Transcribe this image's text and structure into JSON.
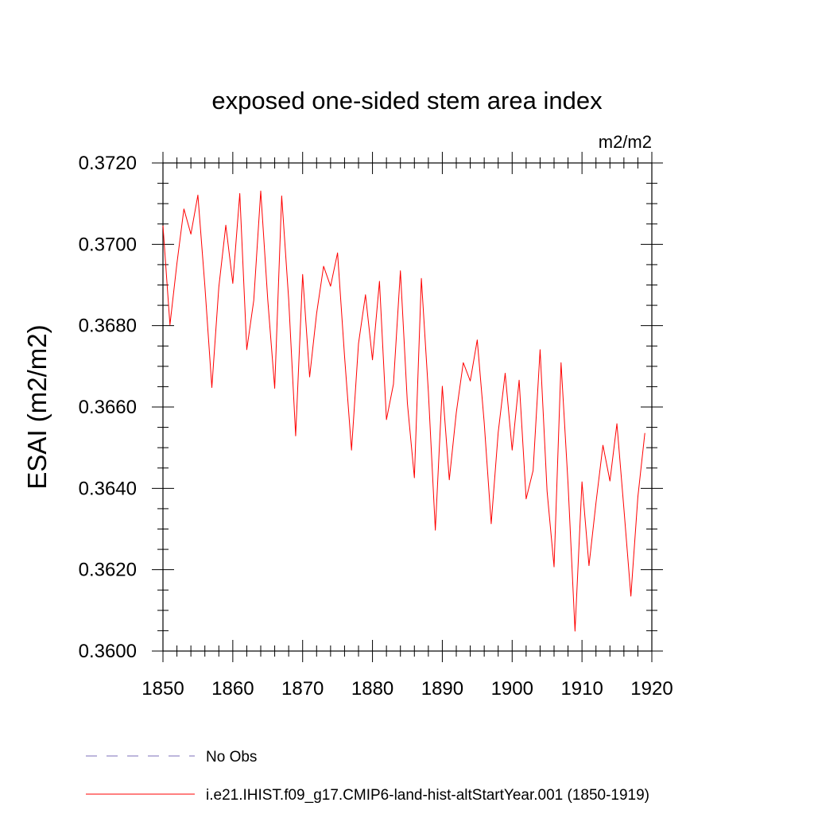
{
  "chart_data": {
    "type": "line",
    "title": "exposed one-sided stem area index",
    "units_label": "m2/m2",
    "ylabel": "ESAI  (m2/m2)",
    "xlabel": "",
    "xlim": [
      1850,
      1920
    ],
    "ylim": [
      0.36,
      0.372
    ],
    "x_ticks": [
      1850,
      1860,
      1870,
      1880,
      1890,
      1900,
      1910,
      1920
    ],
    "y_ticks": [
      0.36,
      0.362,
      0.364,
      0.366,
      0.368,
      0.37,
      0.372
    ],
    "x_tick_labels": [
      "1850",
      "1860",
      "1870",
      "1880",
      "1890",
      "1900",
      "1910",
      "1920"
    ],
    "y_tick_labels": [
      "0.3600",
      "0.3620",
      "0.3640",
      "0.3660",
      "0.3680",
      "0.3700",
      "0.3720"
    ],
    "grid": false,
    "legend_position": "bottom",
    "series": [
      {
        "name": "i.e21.IHIST.f09_g17.CMIP6-land-hist-altStartYear.001 (1850-1919)",
        "color": "#ff0000",
        "line_style": "solid",
        "x": [
          1850,
          1851,
          1852,
          1853,
          1854,
          1855,
          1856,
          1857,
          1858,
          1859,
          1860,
          1861,
          1862,
          1863,
          1864,
          1865,
          1866,
          1867,
          1868,
          1869,
          1870,
          1871,
          1872,
          1873,
          1874,
          1875,
          1876,
          1877,
          1878,
          1879,
          1880,
          1881,
          1882,
          1883,
          1884,
          1885,
          1886,
          1887,
          1888,
          1889,
          1890,
          1891,
          1892,
          1893,
          1894,
          1895,
          1896,
          1897,
          1898,
          1899,
          1900,
          1901,
          1902,
          1903,
          1904,
          1905,
          1906,
          1907,
          1908,
          1909,
          1910,
          1911,
          1912,
          1913,
          1914,
          1915,
          1916,
          1917,
          1918,
          1919
        ],
        "values": [
          0.37046,
          0.36802,
          0.36953,
          0.37087,
          0.37025,
          0.37121,
          0.36898,
          0.36648,
          0.36895,
          0.37047,
          0.36904,
          0.37125,
          0.36741,
          0.36862,
          0.37131,
          0.36865,
          0.36646,
          0.37119,
          0.36865,
          0.36529,
          0.36926,
          0.36674,
          0.3683,
          0.36946,
          0.36897,
          0.36979,
          0.36725,
          0.36494,
          0.36756,
          0.36876,
          0.36716,
          0.36909,
          0.36569,
          0.36656,
          0.36935,
          0.36609,
          0.36426,
          0.36916,
          0.36638,
          0.36297,
          0.36651,
          0.36421,
          0.36586,
          0.36709,
          0.36664,
          0.36765,
          0.36561,
          0.36313,
          0.36537,
          0.36683,
          0.36494,
          0.36666,
          0.36374,
          0.36444,
          0.36741,
          0.36393,
          0.36207,
          0.36709,
          0.36412,
          0.36049,
          0.36416,
          0.3621,
          0.36364,
          0.36506,
          0.36418,
          0.36559,
          0.3635,
          0.36135,
          0.36379,
          0.36536
        ]
      },
      {
        "name": "No Obs",
        "color": "#7b6fb8",
        "line_style": "dashed",
        "x": [],
        "values": []
      }
    ]
  }
}
